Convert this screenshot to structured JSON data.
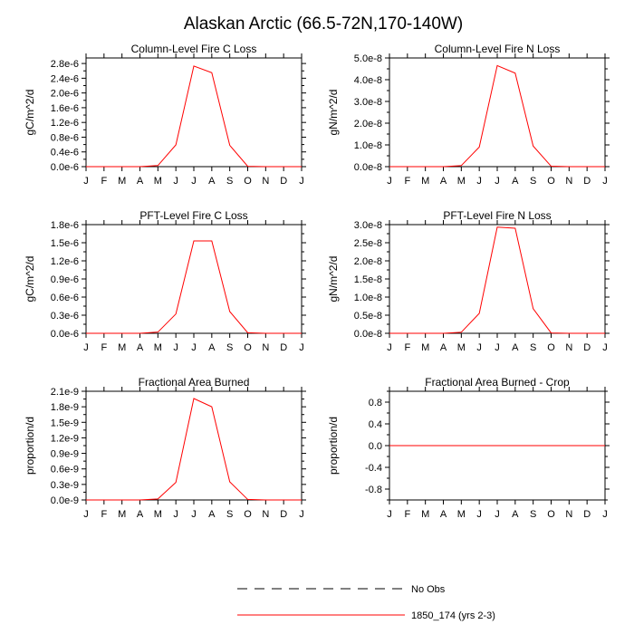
{
  "figure": {
    "title": "Alaskan Arctic (66.5-72N,170-140W)"
  },
  "chart_data": [
    {
      "type": "line",
      "title": "Column-Level Fire C Loss",
      "ylabel": "gC/m^2/d",
      "xlabel": "",
      "categories": [
        "J",
        "F",
        "M",
        "A",
        "M",
        "J",
        "J",
        "A",
        "S",
        "O",
        "N",
        "D",
        "J"
      ],
      "ylim": [
        0,
        2.95e-06
      ],
      "yticks": [
        0,
        4e-07,
        8e-07,
        1.2e-06,
        1.6e-06,
        2e-06,
        2.4e-06,
        2.8e-06
      ],
      "ytick_labels": [
        "0.0e-6",
        "0.4e-6",
        "0.8e-6",
        "1.2e-6",
        "1.6e-6",
        "2.0e-6",
        "2.4e-6",
        "2.8e-6"
      ],
      "series": [
        {
          "name": "1850_174 (yrs 2-3)",
          "color": "#ff0000",
          "values": [
            0,
            0,
            0,
            0,
            3e-08,
            5.9e-07,
            2.73e-06,
            2.55e-06,
            5.8e-07,
            1e-08,
            0,
            0,
            0
          ]
        }
      ]
    },
    {
      "type": "line",
      "title": "Column-Level Fire N Loss",
      "ylabel": "gN/m^2/d",
      "xlabel": "",
      "categories": [
        "J",
        "F",
        "M",
        "A",
        "M",
        "J",
        "J",
        "A",
        "S",
        "O",
        "N",
        "D",
        "J"
      ],
      "ylim": [
        0,
        5e-08
      ],
      "yticks": [
        0,
        1e-08,
        2e-08,
        3e-08,
        4e-08,
        5e-08
      ],
      "ytick_labels": [
        "0.0e-8",
        "1.0e-8",
        "2.0e-8",
        "3.0e-8",
        "4.0e-8",
        "5.0e-8"
      ],
      "series": [
        {
          "name": "1850_174 (yrs 2-3)",
          "color": "#ff0000",
          "values": [
            0,
            0,
            0,
            0,
            5e-10,
            9e-09,
            4.65e-08,
            4.3e-08,
            9.5e-09,
            2e-10,
            0,
            0,
            0
          ]
        }
      ]
    },
    {
      "type": "line",
      "title": "PFT-Level Fire C Loss",
      "ylabel": "gC/m^2/d",
      "xlabel": "",
      "categories": [
        "J",
        "F",
        "M",
        "A",
        "M",
        "J",
        "J",
        "A",
        "S",
        "O",
        "N",
        "D",
        "J"
      ],
      "ylim": [
        0,
        1.8e-06
      ],
      "yticks": [
        0,
        3e-07,
        6e-07,
        9e-07,
        1.2e-06,
        1.5e-06,
        1.8e-06
      ],
      "ytick_labels": [
        "0.0e-6",
        "0.3e-6",
        "0.6e-6",
        "0.9e-6",
        "1.2e-6",
        "1.5e-6",
        "1.8e-6"
      ],
      "series": [
        {
          "name": "1850_174 (yrs 2-3)",
          "color": "#ff0000",
          "values": [
            0,
            0,
            0,
            0,
            2e-08,
            3.2e-07,
            1.53e-06,
            1.53e-06,
            3.6e-07,
            1e-08,
            0,
            0,
            0
          ]
        }
      ]
    },
    {
      "type": "line",
      "title": "PFT-Level Fire N Loss",
      "ylabel": "gN/m^2/d",
      "xlabel": "",
      "categories": [
        "J",
        "F",
        "M",
        "A",
        "M",
        "J",
        "J",
        "A",
        "S",
        "O",
        "N",
        "D",
        "J"
      ],
      "ylim": [
        0,
        3e-08
      ],
      "yticks": [
        0,
        5e-09,
        1e-08,
        1.5e-08,
        2e-08,
        2.5e-08,
        3e-08
      ],
      "ytick_labels": [
        "0.0e-8",
        "0.5e-8",
        "1.0e-8",
        "1.5e-8",
        "2.0e-8",
        "2.5e-8",
        "3.0e-8"
      ],
      "series": [
        {
          "name": "1850_174 (yrs 2-3)",
          "color": "#ff0000",
          "values": [
            0,
            0,
            0,
            0,
            3e-10,
            5.5e-09,
            2.93e-08,
            2.9e-08,
            6.8e-09,
            1e-10,
            0,
            0,
            0
          ]
        }
      ]
    },
    {
      "type": "line",
      "title": "Fractional Area Burned",
      "ylabel": "proportion/d",
      "xlabel": "",
      "categories": [
        "J",
        "F",
        "M",
        "A",
        "M",
        "J",
        "J",
        "A",
        "S",
        "O",
        "N",
        "D",
        "J"
      ],
      "ylim": [
        0,
        2.1e-09
      ],
      "yticks": [
        0,
        3e-10,
        6e-10,
        9e-10,
        1.2e-09,
        1.5e-09,
        1.8e-09,
        2.1e-09
      ],
      "ytick_labels": [
        "0.0e-9",
        "0.3e-9",
        "0.6e-9",
        "0.9e-9",
        "1.2e-9",
        "1.5e-9",
        "1.8e-9",
        "2.1e-9"
      ],
      "series": [
        {
          "name": "1850_174 (yrs 2-3)",
          "color": "#ff0000",
          "values": [
            0,
            0,
            0,
            0,
            2e-11,
            3.4e-10,
            1.96e-09,
            1.8e-09,
            3.5e-10,
            1e-11,
            0,
            0,
            0
          ]
        }
      ]
    },
    {
      "type": "line",
      "title": "Fractional Area Burned - Crop",
      "ylabel": "proportion/d",
      "xlabel": "",
      "categories": [
        "J",
        "F",
        "M",
        "A",
        "M",
        "J",
        "J",
        "A",
        "S",
        "O",
        "N",
        "D",
        "J"
      ],
      "ylim": [
        -1.0,
        1.0
      ],
      "yticks": [
        -0.8,
        -0.4,
        0.0,
        0.4,
        0.8
      ],
      "ytick_labels": [
        "-0.8",
        "-0.4",
        "0.0",
        "0.4",
        "0.8"
      ],
      "series": [
        {
          "name": "1850_174 (yrs 2-3)",
          "color": "#ff0000",
          "values": [
            0,
            0,
            0,
            0,
            0,
            0,
            0,
            0,
            0,
            0,
            0,
            0,
            0
          ]
        }
      ]
    }
  ],
  "legend": {
    "items": [
      {
        "label": "No Obs",
        "style": "dashed",
        "color": "#000000"
      },
      {
        "label": "1850_174 (yrs 2-3)",
        "style": "solid",
        "color": "#ff0000"
      }
    ]
  }
}
